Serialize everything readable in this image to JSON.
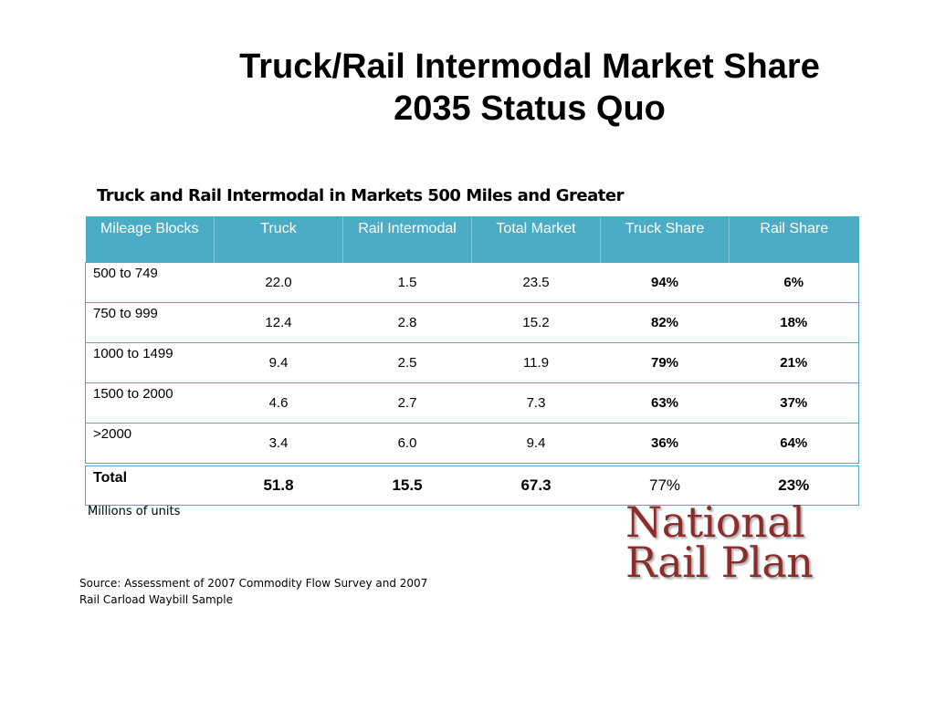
{
  "title": {
    "line1": "Truck/Rail Intermodal Market Share",
    "line2": "2035 Status Quo"
  },
  "subtitle": "Truck and Rail Intermodal in Markets 500 Miles and Greater",
  "table": {
    "headers": [
      "Mileage Blocks",
      "Truck",
      "Rail Intermodal",
      "Total Market",
      "Truck Share",
      "Rail Share"
    ],
    "rows": [
      {
        "mileage": "500 to 749",
        "truck": "22.0",
        "rail": "1.5",
        "total": "23.5",
        "truck_share": "94%",
        "rail_share": "6%"
      },
      {
        "mileage": "750 to 999",
        "truck": "12.4",
        "rail": "2.8",
        "total": "15.2",
        "truck_share": "82%",
        "rail_share": "18%"
      },
      {
        "mileage": "1000 to 1499",
        "truck": "9.4",
        "rail": "2.5",
        "total": "11.9",
        "truck_share": "79%",
        "rail_share": "21%"
      },
      {
        "mileage": "1500 to 2000",
        "truck": "4.6",
        "rail": "2.7",
        "total": "7.3",
        "truck_share": "63%",
        "rail_share": "37%"
      },
      {
        "mileage": ">2000",
        "truck": "3.4",
        "rail": "6.0",
        "total": "9.4",
        "truck_share": "36%",
        "rail_share": "64%"
      }
    ],
    "total": {
      "mileage": "Total",
      "truck": "51.8",
      "rail": "15.5",
      "total": "67.3",
      "truck_share": "77%",
      "rail_share": "23%"
    }
  },
  "note": "Millions of units",
  "source": {
    "line1": "Source:  Assessment of 2007 Commodity Flow Survey and 2007",
    "line2": "Rail Carload Waybill Sample"
  },
  "logo": {
    "line1": "National",
    "line2": "Rail Plan"
  },
  "colors": {
    "header_bg": "#4bacc6",
    "logo": "#8b2d2a"
  }
}
